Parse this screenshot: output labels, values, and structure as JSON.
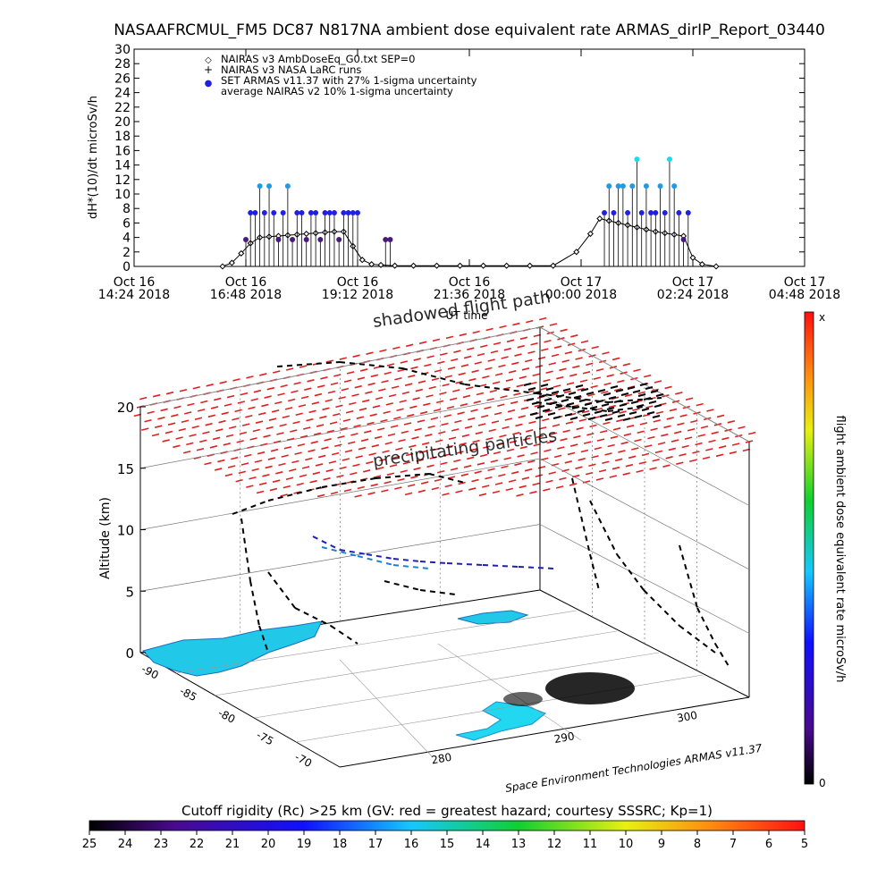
{
  "title": "NASAAFRCMUL_FM5 DC87 N817NA ambient dose equivalent rate ARMAS_dirIP_Report_03440",
  "top_chart": {
    "ylabel": "dH*(10)/dt microSv/h",
    "xlabel": "UT time",
    "y_ticks": [
      "0",
      "2",
      "4",
      "6",
      "8",
      "10",
      "12",
      "14",
      "16",
      "18",
      "20",
      "22",
      "24",
      "26",
      "28",
      "30"
    ],
    "x_ticks": [
      {
        "line1": "Oct 16",
        "line2": "14:24 2018"
      },
      {
        "line1": "Oct 16",
        "line2": "16:48 2018"
      },
      {
        "line1": "Oct 16",
        "line2": "19:12 2018"
      },
      {
        "line1": "Oct 16",
        "line2": "21:36 2018"
      },
      {
        "line1": "Oct 17",
        "line2": "00:00 2018"
      },
      {
        "line1": "Oct 17",
        "line2": "02:24 2018"
      },
      {
        "line1": "Oct 17",
        "line2": "04:48 2018"
      }
    ],
    "legend": [
      {
        "symbol": "◇",
        "label": "NAIRAS v3 AmbDoseEq_G0.txt SEP=0"
      },
      {
        "symbol": "+",
        "label": "NAIRAS v3 NASA LaRC runs"
      },
      {
        "symbol": "●",
        "label": "SET ARMAS v11.37 with 27% 1-sigma uncertainty"
      },
      {
        "symbol": "",
        "label": "average NAIRAS v2 10% 1-sigma uncertainty"
      }
    ]
  },
  "chart_data": [
    {
      "type": "scatter",
      "title": "NASAAFRCMUL_FM5 DC87 N817NA ambient dose equivalent rate ARMAS_dirIP_Report_03440",
      "xlabel": "UT time",
      "ylabel": "dH*(10)/dt microSv/h",
      "xlim_hours_after_oct16_1424": [
        0,
        14.4
      ],
      "ylim": [
        0,
        30
      ],
      "series": [
        {
          "name": "SET ARMAS v11.37 with 27% 1-sigma uncertainty",
          "x_hours": [
            2.4,
            2.5,
            2.6,
            2.7,
            2.8,
            2.9,
            3.0,
            3.1,
            3.2,
            3.3,
            3.4,
            3.5,
            3.6,
            3.7,
            3.8,
            3.9,
            4.0,
            4.1,
            4.2,
            4.3,
            4.4,
            4.5,
            4.6,
            4.7,
            4.8,
            5.4,
            5.5,
            10.1,
            10.2,
            10.3,
            10.4,
            10.5,
            10.6,
            10.7,
            10.8,
            10.9,
            11.0,
            11.1,
            11.2,
            11.3,
            11.4,
            11.5,
            11.6,
            11.7,
            11.8,
            11.9
          ],
          "values": [
            3.7,
            7.4,
            7.4,
            11.1,
            7.4,
            11.1,
            7.4,
            3.7,
            7.4,
            11.1,
            3.7,
            7.4,
            7.4,
            3.7,
            7.4,
            7.4,
            3.7,
            7.4,
            7.4,
            7.4,
            3.7,
            7.4,
            7.4,
            7.4,
            7.4,
            3.7,
            3.7,
            7.4,
            11.1,
            7.4,
            11.1,
            11.1,
            7.4,
            11.1,
            14.8,
            7.4,
            11.1,
            7.4,
            7.4,
            11.1,
            7.4,
            14.8,
            11.1,
            7.4,
            3.7,
            7.4
          ]
        },
        {
          "name": "NAIRAS v3 AmbDoseEq_G0.txt SEP=0",
          "x_hours": [
            1.9,
            2.1,
            2.3,
            2.5,
            2.7,
            2.9,
            3.1,
            3.3,
            3.5,
            3.7,
            3.9,
            4.1,
            4.3,
            4.5,
            4.7,
            4.9,
            5.1,
            5.3,
            5.6,
            6.0,
            6.5,
            7.0,
            7.5,
            8.0,
            8.5,
            9.0,
            9.5,
            9.8,
            10.0,
            10.2,
            10.4,
            10.6,
            10.8,
            11.0,
            11.2,
            11.4,
            11.6,
            11.8,
            12.0,
            12.2,
            12.5
          ],
          "values": [
            0,
            0.5,
            1.8,
            3.2,
            4.0,
            4.1,
            4.2,
            4.3,
            4.4,
            4.5,
            4.6,
            4.7,
            4.8,
            4.8,
            2.8,
            0.9,
            0.3,
            0.2,
            0.1,
            0.1,
            0.1,
            0.1,
            0.1,
            0.1,
            0.1,
            0.1,
            2.0,
            4.5,
            6.6,
            6.3,
            6.0,
            5.7,
            5.4,
            5.1,
            4.8,
            4.6,
            4.4,
            4.2,
            1.2,
            0.3,
            0
          ]
        }
      ]
    },
    {
      "type": "heatmap",
      "title": "flight ambient dose equivalent rate microSv/h",
      "zlabel": "Altitude (km)",
      "z_ticks": [
        "0",
        "5",
        "10",
        "15",
        "20"
      ],
      "y_ticks": [
        "-90",
        "-85",
        "-80",
        "-75",
        "-70"
      ],
      "x_ticks": [
        "280",
        "290",
        "300"
      ],
      "annotations": [
        "shadowed flight path",
        "precipitating particles",
        "Space Environment Technologies ARMAS v11.37"
      ],
      "colorbar": {
        "label": "flight ambient dose equivalent rate microSv/h",
        "top": "x",
        "bottom": "0"
      }
    },
    {
      "type": "heatmap",
      "title": "Cutoff rigidity (Rc) >25 km (GV: red = greatest hazard; courtesy SSSRC; Kp=1)",
      "colorbar_ticks": [
        "25",
        "24",
        "23",
        "22",
        "21",
        "20",
        "19",
        "18",
        "17",
        "16",
        "15",
        "14",
        "13",
        "12",
        "11",
        "10",
        "9",
        "8",
        "7",
        "6",
        "5"
      ]
    }
  ],
  "scene": {
    "zlabel": "Altitude (km)",
    "z_ticks": [
      "0",
      "5",
      "10",
      "15",
      "20"
    ],
    "y_ticks": [
      "-90",
      "-85",
      "-80",
      "-75",
      "-70"
    ],
    "x_ticks": [
      "280",
      "290",
      "300"
    ],
    "shadow_label": "shadowed flight path",
    "precip_label": "precipitating particles",
    "credit": "Space Environment Technologies ARMAS v11.37"
  },
  "colorbar_right": {
    "label": "flight ambient dose equivalent rate microSv/h",
    "top": "x",
    "bottom": "0"
  },
  "bottom_bar": {
    "title": "Cutoff rigidity (Rc) >25 km (GV: red = greatest hazard; courtesy SSSRC; Kp=1)",
    "ticks": [
      "25",
      "24",
      "23",
      "22",
      "21",
      "20",
      "19",
      "18",
      "17",
      "16",
      "15",
      "14",
      "13",
      "12",
      "11",
      "10",
      "9",
      "8",
      "7",
      "6",
      "5"
    ]
  },
  "colors": {
    "armas": "#2020e0",
    "armas_high": "#1e9be8",
    "armas_peak": "#22d8e8",
    "armas_low": "#4a1a7a",
    "precip": "#e02020",
    "ground": "#22c8e8"
  }
}
